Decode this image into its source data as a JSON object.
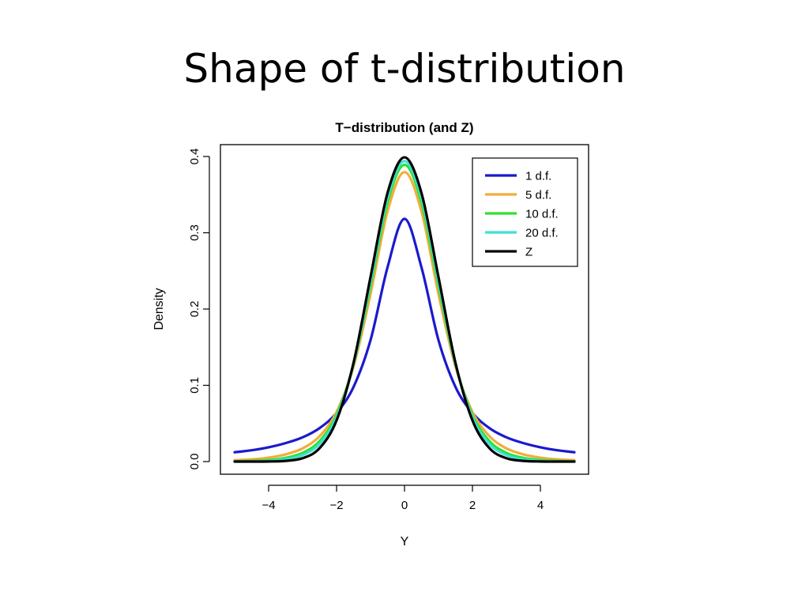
{
  "slide": {
    "title": "Shape of t-distribution"
  },
  "chart_data": {
    "type": "line",
    "title": "T−distribution (and Z)",
    "xlabel": "Y",
    "ylabel": "Density",
    "xlim": [
      -5,
      5
    ],
    "ylim": [
      0,
      0.4
    ],
    "x_ticks": [
      "−4",
      "−2",
      "0",
      "2",
      "4"
    ],
    "y_ticks": [
      "0.0",
      "0.1",
      "0.2",
      "0.3",
      "0.4"
    ],
    "grid": false,
    "legend_position": "top-right",
    "x": [
      -5,
      -4.5,
      -4,
      -3.5,
      -3,
      -2.5,
      -2,
      -1.5,
      -1,
      -0.5,
      0,
      0.5,
      1,
      1.5,
      2,
      2.5,
      3,
      3.5,
      4,
      4.5,
      5
    ],
    "series": [
      {
        "name": "1 d.f.",
        "color": "#1a1acd",
        "values": [
          0.0122,
          0.0148,
          0.0187,
          0.0242,
          0.0318,
          0.0439,
          0.0637,
          0.0979,
          0.1592,
          0.2546,
          0.3183,
          0.2546,
          0.1592,
          0.0979,
          0.0637,
          0.0439,
          0.0318,
          0.0242,
          0.0187,
          0.0148,
          0.0122
        ]
      },
      {
        "name": "5 d.f.",
        "color": "#f0ad3c",
        "values": [
          0.0018,
          0.0029,
          0.0051,
          0.0094,
          0.0173,
          0.0332,
          0.0651,
          0.1245,
          0.2197,
          0.3279,
          0.3796,
          0.3279,
          0.2197,
          0.1245,
          0.0651,
          0.0332,
          0.0173,
          0.0094,
          0.0051,
          0.0029,
          0.0018
        ]
      },
      {
        "name": "10 d.f.",
        "color": "#2ee02e",
        "values": [
          0.0004,
          0.0009,
          0.002,
          0.0049,
          0.0114,
          0.0269,
          0.0611,
          0.1274,
          0.2304,
          0.3397,
          0.3891,
          0.3397,
          0.2304,
          0.1274,
          0.0611,
          0.0269,
          0.0114,
          0.0049,
          0.002,
          0.0009,
          0.0004
        ]
      },
      {
        "name": "20 d.f.",
        "color": "#3ee0d6",
        "values": [
          0.0001,
          0.0002,
          0.0009,
          0.0029,
          0.0085,
          0.0231,
          0.0581,
          0.1283,
          0.236,
          0.3459,
          0.394,
          0.3459,
          0.236,
          0.1283,
          0.0581,
          0.0231,
          0.0085,
          0.0029,
          0.0009,
          0.0002,
          0.0001
        ]
      },
      {
        "name": "Z",
        "color": "#000000",
        "values": [
          0.0,
          0.0,
          0.0001,
          0.0009,
          0.0044,
          0.0175,
          0.054,
          0.1295,
          0.242,
          0.3521,
          0.3989,
          0.3521,
          0.242,
          0.1295,
          0.054,
          0.0175,
          0.0044,
          0.0009,
          0.0001,
          0.0,
          0.0
        ]
      }
    ]
  }
}
